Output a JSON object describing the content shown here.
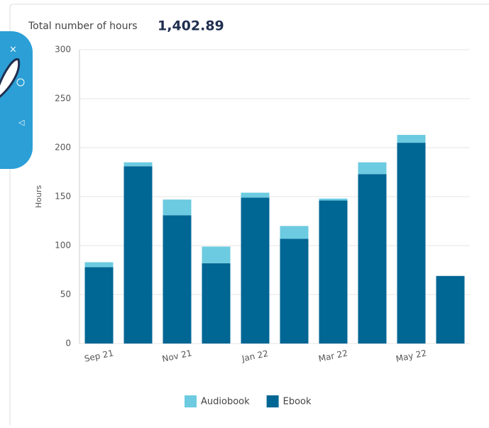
{
  "chart_data": {
    "type": "stacked-bar",
    "title": "Total number of hours",
    "total": "1,402.89",
    "y_label": "Hours",
    "categories": [
      "Sep 21",
      null,
      "Nov 21",
      null,
      "Jan 22",
      null,
      "Mar 22",
      null,
      "May 22",
      null
    ],
    "series": [
      {
        "name": "Ebook",
        "color": "#006694",
        "values": [
          78,
          181,
          131,
          82,
          149,
          107,
          146,
          173,
          205,
          69
        ]
      },
      {
        "name": "Audiobook",
        "color": "#6ccbe0",
        "values": [
          5,
          4,
          16,
          17,
          5,
          13,
          2,
          12,
          8,
          0
        ]
      }
    ],
    "legend_order": [
      1,
      0
    ],
    "ylim": [
      0,
      300
    ],
    "yticks": [
      0,
      50,
      100,
      150,
      200,
      250,
      300
    ],
    "grid": true
  }
}
